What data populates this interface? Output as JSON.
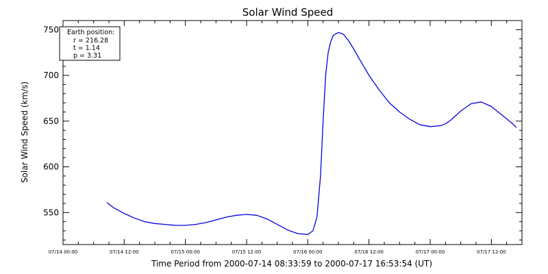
{
  "chart_data": {
    "type": "line",
    "title": "Solar Wind Speed",
    "xlabel": "Time Period from 2000-07-14 08:33:59 to 2000-07-17 16:53:54 (UT)",
    "ylabel": "Solar Wind Speed (km/s)",
    "x_unit": "hours since 2000-07-14 00:00 UT",
    "xlim": [
      0,
      90
    ],
    "ylim": [
      515,
      760
    ],
    "xticks": [
      {
        "value": 0,
        "label": "07/14 00:00"
      },
      {
        "value": 12,
        "label": "07/14 12:00"
      },
      {
        "value": 24,
        "label": "07/15 00:00"
      },
      {
        "value": 36,
        "label": "07/15 12:00"
      },
      {
        "value": 48,
        "label": "07/16 00:00"
      },
      {
        "value": 60,
        "label": "07/16 12:00"
      },
      {
        "value": 72,
        "label": "07/17 00:00"
      },
      {
        "value": 84,
        "label": "07/17 12:00"
      }
    ],
    "yticks": [
      {
        "value": 550,
        "label": "550"
      },
      {
        "value": 600,
        "label": "600"
      },
      {
        "value": 650,
        "label": "650"
      },
      {
        "value": 700,
        "label": "700"
      },
      {
        "value": 750,
        "label": "750"
      }
    ],
    "series": [
      {
        "color": "#0000dd",
        "x": [
          8.6,
          10,
          12,
          14,
          16,
          18,
          20,
          22,
          24,
          26,
          28,
          30,
          32,
          34,
          36,
          38,
          40,
          42,
          44,
          46,
          48,
          49,
          49.8,
          50.5,
          51,
          51.5,
          52,
          52.5,
          53,
          54,
          55,
          56,
          57,
          58,
          60,
          62,
          64,
          66,
          68,
          70,
          72,
          74,
          75,
          76,
          78,
          80,
          82,
          84,
          86,
          88,
          88.9
        ],
        "y": [
          561,
          555,
          549,
          544,
          540,
          538,
          537,
          536,
          536,
          537,
          539,
          542,
          545,
          547,
          548,
          547,
          543,
          537,
          531,
          527,
          526,
          530,
          545,
          590,
          650,
          700,
          725,
          737,
          744,
          747,
          745,
          738,
          729,
          719,
          700,
          684,
          670,
          660,
          652,
          646,
          644,
          645,
          647,
          651,
          661,
          669,
          671,
          666,
          657,
          648,
          643
        ]
      }
    ],
    "annotation": {
      "title": "Earth position:",
      "lines": [
        "r = 216.28",
        "t = 1.14",
        "p = 3.31"
      ],
      "position": "top-left"
    },
    "grid": false
  }
}
